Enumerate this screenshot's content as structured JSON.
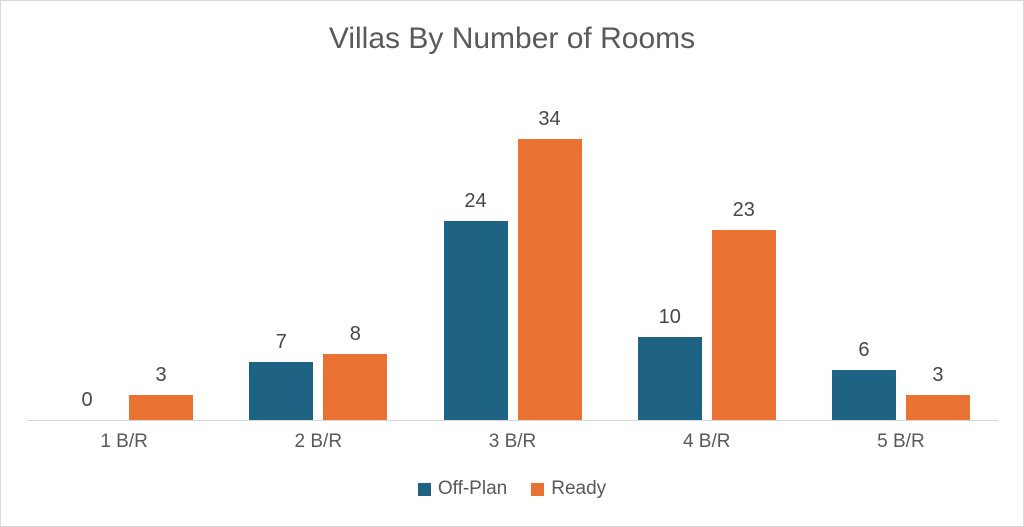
{
  "chart_data": {
    "type": "bar",
    "title": "Villas By Number of Rooms",
    "categories": [
      "1 B/R",
      "2 B/R",
      "3 B/R",
      "4 B/R",
      "5 B/R"
    ],
    "series": [
      {
        "name": "Off-Plan",
        "color": "#1E6284",
        "values": [
          0,
          7,
          24,
          10,
          6
        ]
      },
      {
        "name": "Ready",
        "color": "#E97132",
        "values": [
          3,
          8,
          34,
          23,
          3
        ]
      }
    ],
    "xlabel": "",
    "ylabel": "",
    "ylim": [
      0,
      40
    ],
    "grid": false,
    "legend_position": "bottom"
  },
  "style": {
    "title_color": "#595959",
    "label_color": "#474747",
    "axis_text_color": "#595959",
    "axis_line_color": "#D6D6D6",
    "background": "#FFFFFF",
    "border_color": "#D9D9D9"
  }
}
